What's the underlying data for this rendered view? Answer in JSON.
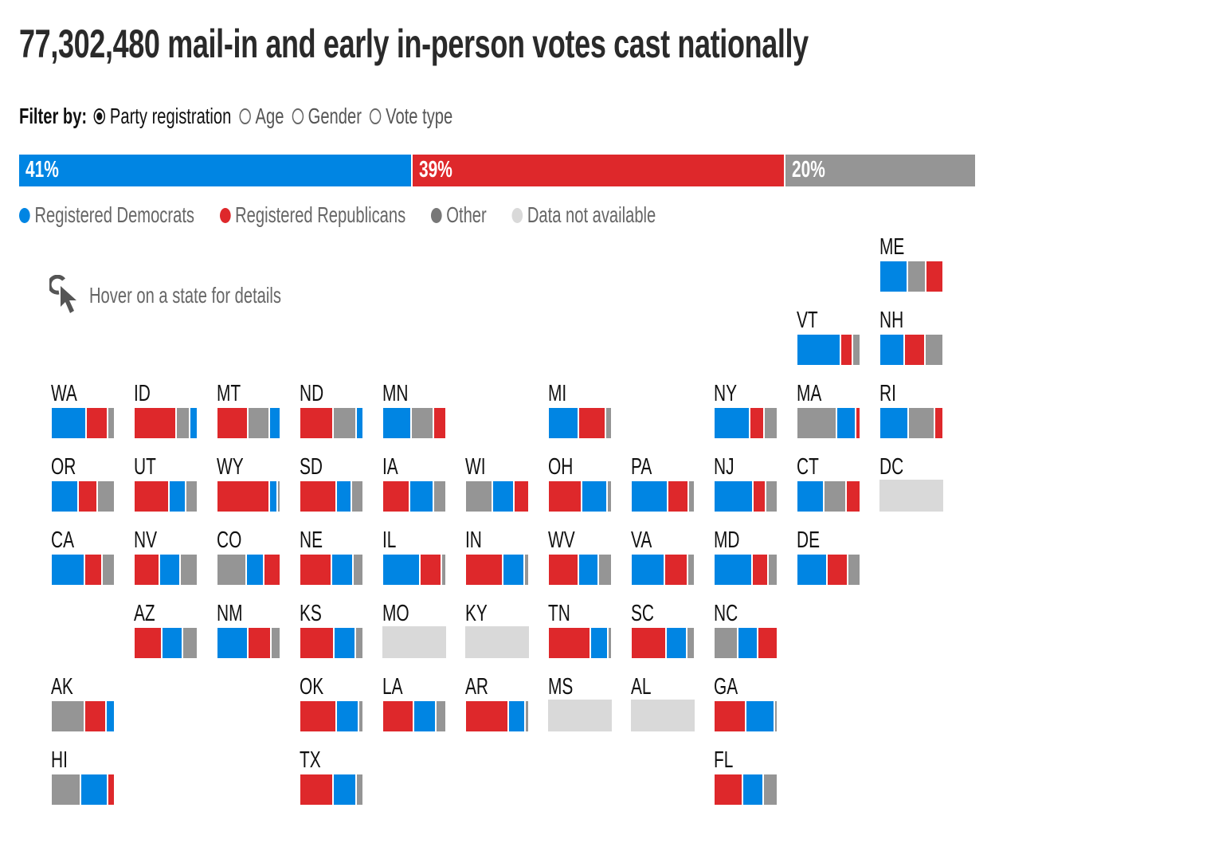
{
  "title": "77,302,480 mail-in and early in-person votes cast nationally",
  "filter": {
    "label": "Filter by:",
    "options": [
      {
        "label": "Party registration",
        "selected": true
      },
      {
        "label": "Age",
        "selected": false
      },
      {
        "label": "Gender",
        "selected": false
      },
      {
        "label": "Vote type",
        "selected": false
      }
    ]
  },
  "colors": {
    "dem": "#0085e3",
    "rep": "#de282b",
    "other": "#959595",
    "na": "#d9d9d9"
  },
  "hover_hint": "Hover on a state for details",
  "chart_data": {
    "type": "bar",
    "title": "77,302,480 mail-in and early in-person votes cast nationally",
    "national": {
      "series": [
        {
          "key": "dem",
          "name": "Registered Democrats",
          "value": 41,
          "label": "41%"
        },
        {
          "key": "rep",
          "name": "Registered Republicans",
          "value": 39,
          "label": "39%"
        },
        {
          "key": "other",
          "name": "Other",
          "value": 20,
          "label": "20%"
        }
      ]
    },
    "legend": [
      {
        "key": "dem",
        "label": "Registered Democrats"
      },
      {
        "key": "rep",
        "label": "Registered Republicans"
      },
      {
        "key": "other",
        "label": "Other"
      },
      {
        "key": "na",
        "label": "Data not available"
      }
    ],
    "states": [
      {
        "abbr": "ME",
        "row": 0,
        "col": 10,
        "dem": 41,
        "rep": 28,
        "other": 29
      },
      {
        "abbr": "VT",
        "row": 1,
        "col": 9,
        "dem": 66,
        "rep": 20,
        "other": 12
      },
      {
        "abbr": "NH",
        "row": 1,
        "col": 10,
        "dem": 37,
        "rep": 32,
        "other": 29
      },
      {
        "abbr": "WA",
        "row": 2,
        "col": 0,
        "dem": 54,
        "rep": 35,
        "other": 11
      },
      {
        "abbr": "ID",
        "row": 2,
        "col": 1,
        "dem": 13,
        "rep": 65,
        "other": 22
      },
      {
        "abbr": "MT",
        "row": 2,
        "col": 2,
        "dem": 18,
        "rep": 47,
        "other": 35
      },
      {
        "abbr": "ND",
        "row": 2,
        "col": 3,
        "dem": 11,
        "rep": 51,
        "other": 38
      },
      {
        "abbr": "MN",
        "row": 2,
        "col": 4,
        "dem": 43,
        "rep": 20,
        "other": 36
      },
      {
        "abbr": "MI",
        "row": 2,
        "col": 6,
        "dem": 46,
        "rep": 44,
        "other": 10
      },
      {
        "abbr": "NY",
        "row": 2,
        "col": 8,
        "dem": 55,
        "rep": 22,
        "other": 22
      },
      {
        "abbr": "MA",
        "row": 2,
        "col": 9,
        "dem": 31,
        "rep": 8,
        "other": 61
      },
      {
        "abbr": "RI",
        "row": 2,
        "col": 10,
        "dem": 43,
        "rep": 14,
        "other": 43
      },
      {
        "abbr": "OR",
        "row": 3,
        "col": 0,
        "dem": 40,
        "rep": 31,
        "other": 28
      },
      {
        "abbr": "UT",
        "row": 3,
        "col": 1,
        "dem": 27,
        "rep": 54,
        "other": 19
      },
      {
        "abbr": "WY",
        "row": 3,
        "col": 2,
        "dem": 13,
        "rep": 80,
        "other": 5
      },
      {
        "abbr": "SD",
        "row": 3,
        "col": 3,
        "dem": 24,
        "rep": 57,
        "other": 19
      },
      {
        "abbr": "IA",
        "row": 3,
        "col": 4,
        "dem": 39,
        "rep": 40,
        "other": 20
      },
      {
        "abbr": "WI",
        "row": 3,
        "col": 5,
        "dem": 34,
        "rep": 24,
        "other": 40
      },
      {
        "abbr": "OH",
        "row": 3,
        "col": 6,
        "dem": 40,
        "rep": 51,
        "other": 8
      },
      {
        "abbr": "PA",
        "row": 3,
        "col": 7,
        "dem": 57,
        "rep": 33,
        "other": 10
      },
      {
        "abbr": "NJ",
        "row": 3,
        "col": 8,
        "dem": 60,
        "rep": 20,
        "other": 19
      },
      {
        "abbr": "CT",
        "row": 3,
        "col": 9,
        "dem": 40,
        "rep": 23,
        "other": 35
      },
      {
        "abbr": "DC",
        "row": 3,
        "col": 10,
        "dem": null,
        "rep": null,
        "other": null
      },
      {
        "abbr": "CA",
        "row": 4,
        "col": 0,
        "dem": 50,
        "rep": 28,
        "other": 20
      },
      {
        "abbr": "NV",
        "row": 4,
        "col": 1,
        "dem": 33,
        "rep": 37,
        "other": 27
      },
      {
        "abbr": "CO",
        "row": 4,
        "col": 2,
        "dem": 28,
        "rep": 26,
        "other": 44
      },
      {
        "abbr": "NE",
        "row": 4,
        "col": 3,
        "dem": 35,
        "rep": 48,
        "other": 16
      },
      {
        "abbr": "IL",
        "row": 4,
        "col": 4,
        "dem": 56,
        "rep": 33,
        "other": 8
      },
      {
        "abbr": "IN",
        "row": 4,
        "col": 5,
        "dem": 33,
        "rep": 56,
        "other": 8
      },
      {
        "abbr": "WV",
        "row": 4,
        "col": 6,
        "dem": 32,
        "rep": 45,
        "other": 21
      },
      {
        "abbr": "VA",
        "row": 4,
        "col": 7,
        "dem": 51,
        "rep": 37,
        "other": 11
      },
      {
        "abbr": "MD",
        "row": 4,
        "col": 8,
        "dem": 59,
        "rep": 25,
        "other": 15
      },
      {
        "abbr": "DE",
        "row": 4,
        "col": 9,
        "dem": 45,
        "rep": 32,
        "other": 20
      },
      {
        "abbr": "AZ",
        "row": 5,
        "col": 1,
        "dem": 32,
        "rep": 41,
        "other": 24
      },
      {
        "abbr": "NM",
        "row": 5,
        "col": 2,
        "dem": 46,
        "rep": 37,
        "other": 15
      },
      {
        "abbr": "KS",
        "row": 5,
        "col": 3,
        "dem": 33,
        "rep": 52,
        "other": 13
      },
      {
        "abbr": "MO",
        "row": 5,
        "col": 4,
        "dem": null,
        "rep": null,
        "other": null
      },
      {
        "abbr": "KY",
        "row": 5,
        "col": 5,
        "dem": null,
        "rep": null,
        "other": null
      },
      {
        "abbr": "TN",
        "row": 5,
        "col": 6,
        "dem": 27,
        "rep": 64,
        "other": 6
      },
      {
        "abbr": "SC",
        "row": 5,
        "col": 7,
        "dem": 33,
        "rep": 52,
        "other": 12
      },
      {
        "abbr": "NC",
        "row": 5,
        "col": 8,
        "dem": 32,
        "rep": 32,
        "other": 35
      },
      {
        "abbr": "AK",
        "row": 6,
        "col": 0,
        "dem": 14,
        "rep": 33,
        "other": 50
      },
      {
        "abbr": "OK",
        "row": 6,
        "col": 3,
        "dem": 35,
        "rep": 54,
        "other": 7
      },
      {
        "abbr": "LA",
        "row": 6,
        "col": 4,
        "dem": 36,
        "rep": 46,
        "other": 16
      },
      {
        "abbr": "AR",
        "row": 6,
        "col": 5,
        "dem": 27,
        "rep": 65,
        "other": 6
      },
      {
        "abbr": "MS",
        "row": 6,
        "col": 6,
        "dem": null,
        "rep": null,
        "other": null
      },
      {
        "abbr": "AL",
        "row": 6,
        "col": 7,
        "dem": null,
        "rep": null,
        "other": null
      },
      {
        "abbr": "GA",
        "row": 6,
        "col": 8,
        "dem": 45,
        "rep": 48,
        "other": 5
      },
      {
        "abbr": "HI",
        "row": 7,
        "col": 0,
        "dem": 42,
        "rep": 11,
        "other": 44
      },
      {
        "abbr": "TX",
        "row": 7,
        "col": 3,
        "dem": 36,
        "rep": 51,
        "other": 12
      },
      {
        "abbr": "FL",
        "row": 7,
        "col": 8,
        "dem": 32,
        "rep": 43,
        "other": 23
      }
    ]
  }
}
